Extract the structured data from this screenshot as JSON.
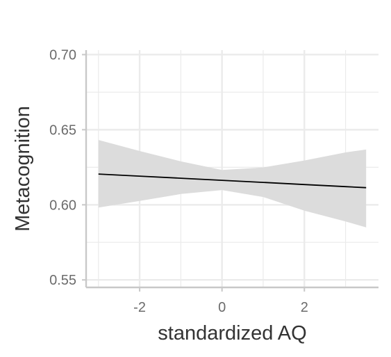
{
  "chart_data": {
    "type": "line",
    "title": "",
    "xlabel": "standardized AQ",
    "ylabel": "Metacognition",
    "xlim": [
      -3.3,
      3.8
    ],
    "ylim": [
      0.545,
      0.703
    ],
    "x_ticks": [
      -2,
      0,
      2
    ],
    "x_tick_labels": [
      "-2",
      "0",
      "2"
    ],
    "y_ticks": [
      0.55,
      0.6,
      0.65,
      0.7
    ],
    "y_tick_labels": [
      "0.55",
      "0.60",
      "0.65",
      "0.70"
    ],
    "grid": true,
    "legend": "none",
    "series": [
      {
        "x": [
          -3.0,
          -2.0,
          -1.0,
          0.0,
          1.0,
          2.0,
          3.0,
          3.5
        ],
        "y": [
          0.6205,
          0.6191,
          0.6177,
          0.6163,
          0.6149,
          0.6135,
          0.6121,
          0.6114
        ],
        "ci_lower": [
          0.5982,
          0.6026,
          0.6072,
          0.6098,
          0.6052,
          0.5961,
          0.5889,
          0.585
        ],
        "ci_upper": [
          0.6432,
          0.6358,
          0.6289,
          0.6232,
          0.6249,
          0.6295,
          0.6349,
          0.6368
        ]
      }
    ],
    "colors": {
      "line": "#000000",
      "ribbon": "#dcdcdc",
      "grid": "#ebebeb",
      "axis": "#c8c8c8"
    }
  }
}
